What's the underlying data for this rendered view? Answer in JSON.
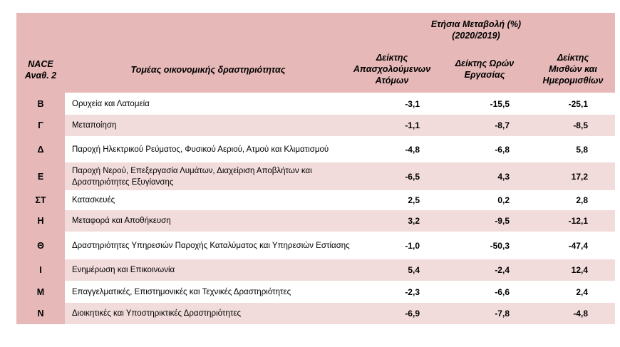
{
  "header": {
    "nace_line1": "NACE",
    "nace_line2": "Αναθ. 2",
    "sector": "Τομέας οικονομικής δραστηριότητας",
    "annual_line1": "Ετήσια Μεταβολή (%)",
    "annual_line2": "(2020/2019)",
    "col1": [
      "Δείκτης",
      "Απασχολούμενων",
      "Ατόμων"
    ],
    "col2": [
      "Δείκτης Ωρών",
      "Εργασίας"
    ],
    "col3": [
      "Δείκτης",
      "Μισθών και",
      "Ημερομισθίων"
    ]
  },
  "rows": [
    {
      "code": "Β",
      "name": "Ορυχεία και Λατομεία",
      "employment": "-3,1",
      "hours": "-15,5",
      "wages": "-25,1"
    },
    {
      "code": "Γ",
      "name": "Μεταποίηση",
      "employment": "-1,1",
      "hours": "-8,7",
      "wages": "-8,5"
    },
    {
      "code": "Δ",
      "name": "Παροχή Ηλεκτρικού Ρεύματος, Φυσικού Αεριού, Ατμού και Κλιματισμού",
      "employment": "-4,8",
      "hours": "-6,8",
      "wages": "5,8"
    },
    {
      "code": "Ε",
      "name": "Παροχή Νερού, Επεξεργασία Λυμάτων, Διαχείριση Αποβλήτων και Δραστηριότητες Εξυγίανσης",
      "employment": "-6,5",
      "hours": "4,3",
      "wages": "17,2"
    },
    {
      "code": "ΣΤ",
      "name": "Κατασκευές",
      "employment": "2,5",
      "hours": "0,2",
      "wages": "2,8"
    },
    {
      "code": "Η",
      "name": "Μεταφορά και Αποθήκευση",
      "employment": "3,2",
      "hours": "-9,5",
      "wages": "-12,1"
    },
    {
      "code": "Θ",
      "name": "Δραστηριότητες Υπηρεσιών Παροχής Καταλύματος και Υπηρεσιών Εστίασης",
      "employment": "-1,0",
      "hours": "-50,3",
      "wages": "-47,4"
    },
    {
      "code": "Ι",
      "name": "Ενημέρωση και Επικοινωνία",
      "employment": "5,4",
      "hours": "-2,4",
      "wages": "12,4"
    },
    {
      "code": "Μ",
      "name": "Επαγγελματικές, Επιστημονικές και Τεχνικές Δραστηριότητες",
      "employment": "-2,3",
      "hours": "-6,6",
      "wages": "2,4"
    },
    {
      "code": "Ν",
      "name": "Διοικητικές και Υποστηρικτικές Δραστηριότητες",
      "employment": "-6,9",
      "hours": "-7,8",
      "wages": "-4,8"
    }
  ]
}
